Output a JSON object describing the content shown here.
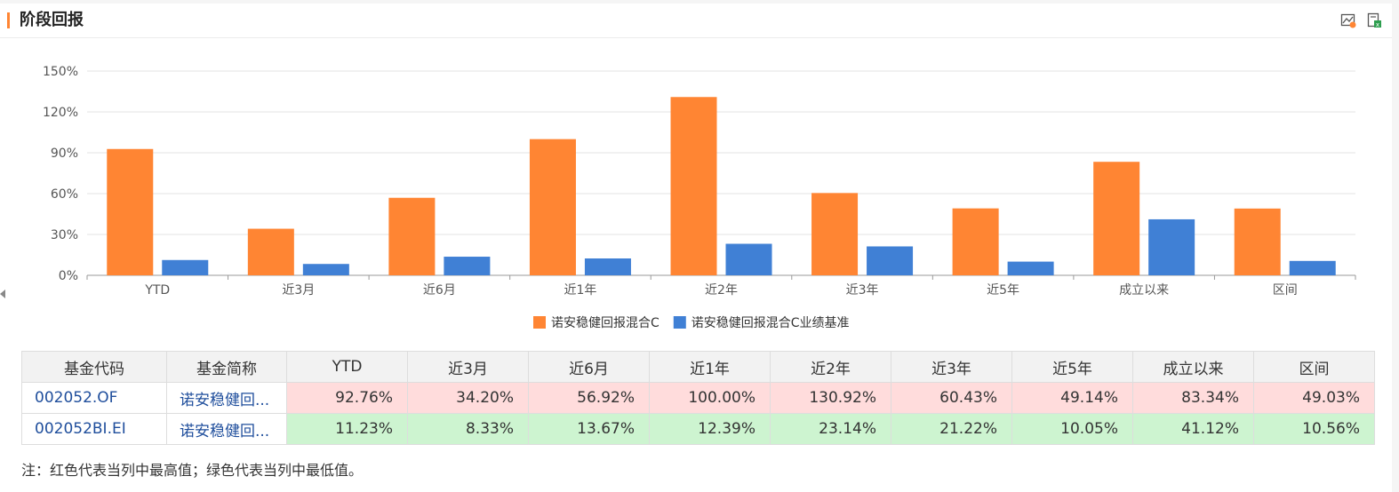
{
  "header": {
    "title": "阶段回报"
  },
  "tool_icons": [
    "chart-image-icon",
    "excel-export-icon"
  ],
  "colors": {
    "fund": "#ff8533",
    "benchmark": "#4080d5",
    "accent": "#ff8533",
    "max_bg": "#ffdcdc",
    "min_bg": "#cdf4d0"
  },
  "chart_data": {
    "type": "bar",
    "categories": [
      "YTD",
      "近3月",
      "近6月",
      "近1年",
      "近2年",
      "近3年",
      "近5年",
      "成立以来",
      "区间"
    ],
    "series": [
      {
        "name": "诺安稳健回报混合C",
        "values": [
          92.76,
          34.2,
          56.92,
          100.0,
          130.92,
          60.43,
          49.14,
          83.34,
          49.03
        ]
      },
      {
        "name": "诺安稳健回报混合C业绩基准",
        "values": [
          11.23,
          8.33,
          13.67,
          12.39,
          23.14,
          21.22,
          10.05,
          41.12,
          10.56
        ]
      }
    ],
    "y_ticks": [
      "0%",
      "30%",
      "60%",
      "90%",
      "120%",
      "150%"
    ],
    "ylim": [
      0,
      150
    ],
    "grid": true,
    "legend": "bottom-center"
  },
  "table": {
    "headers": [
      "基金代码",
      "基金简称",
      "YTD",
      "近3月",
      "近6月",
      "近1年",
      "近2年",
      "近3年",
      "近5年",
      "成立以来",
      "区间"
    ],
    "rows": [
      {
        "code": "002052.OF",
        "name": "诺安稳健回...",
        "values": [
          "92.76%",
          "34.20%",
          "56.92%",
          "100.00%",
          "130.92%",
          "60.43%",
          "49.14%",
          "83.34%",
          "49.03%"
        ]
      },
      {
        "code": "002052BI.EI",
        "name": "诺安稳健回...",
        "values": [
          "11.23%",
          "8.33%",
          "13.67%",
          "12.39%",
          "23.14%",
          "21.22%",
          "10.05%",
          "41.12%",
          "10.56%"
        ]
      }
    ]
  },
  "note": "注：红色代表当列中最高值；绿色代表当列中最低值。"
}
